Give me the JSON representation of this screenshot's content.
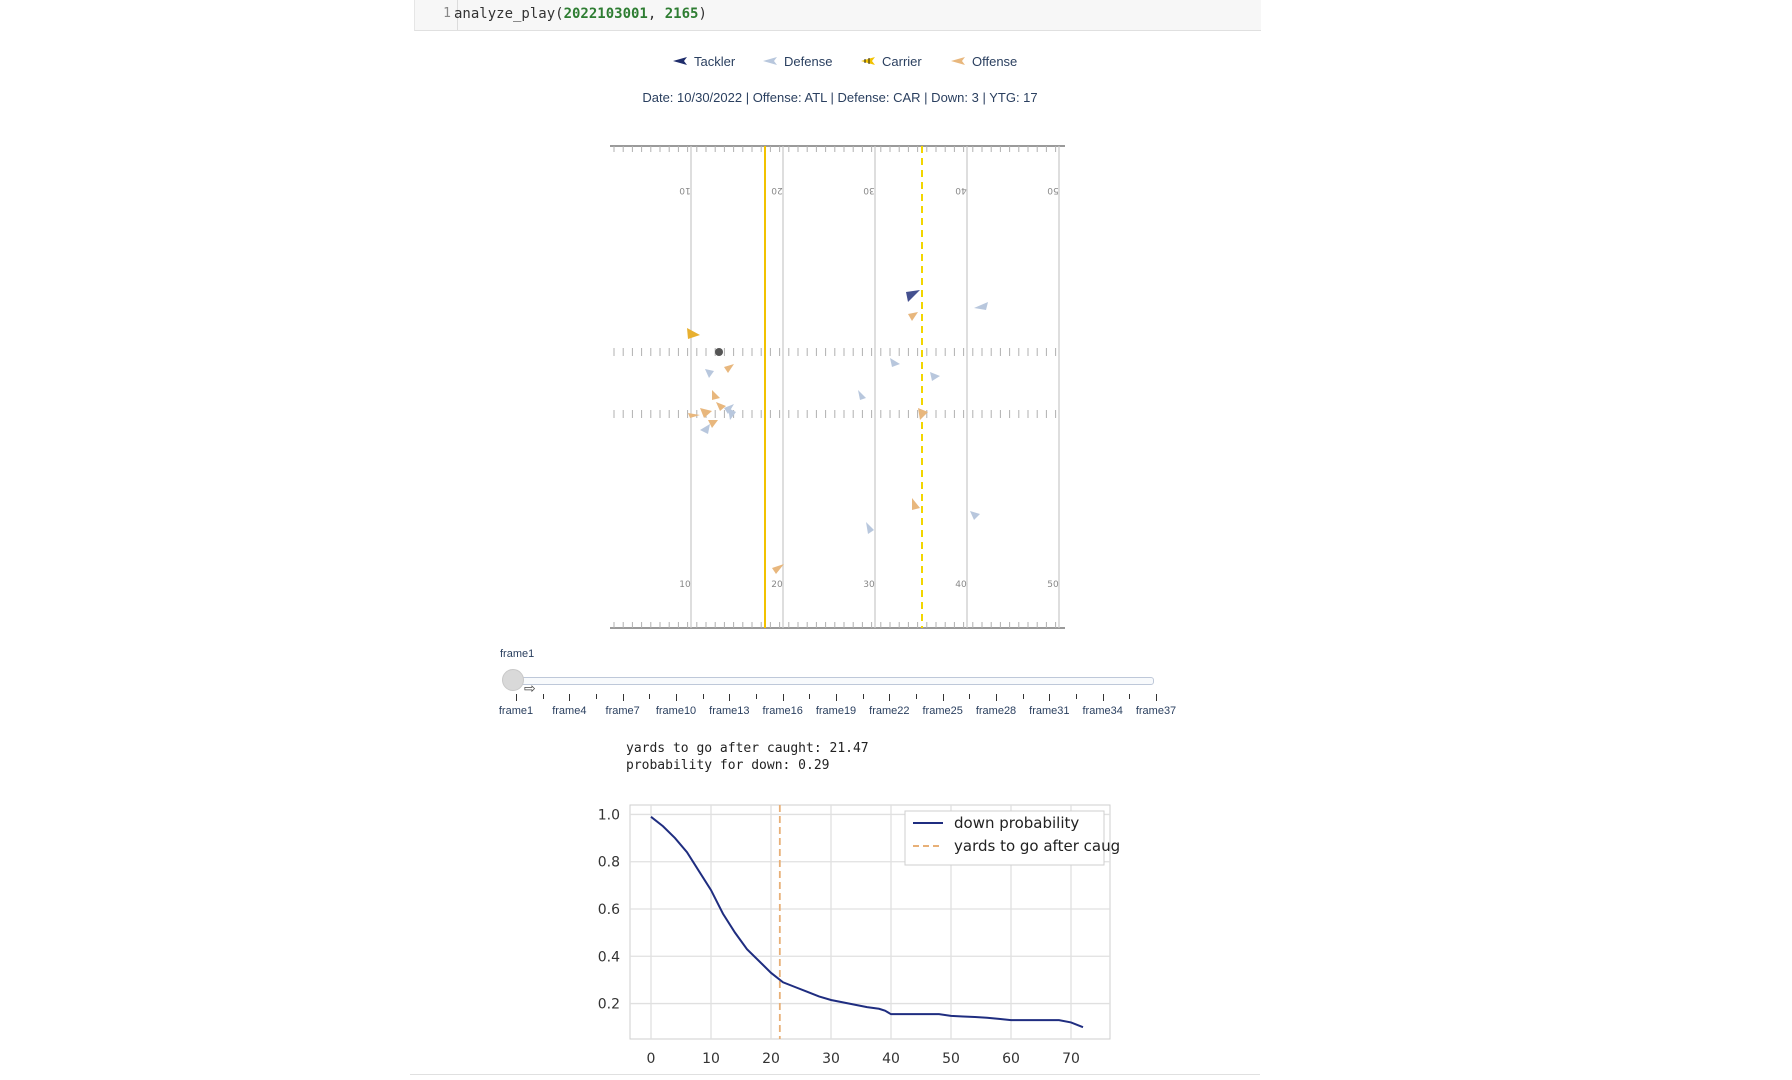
{
  "code_cell": {
    "line_number": "1",
    "func": "analyze_play(",
    "arg1": "2022103001",
    "sep": ", ",
    "arg2": "2165",
    "close": ")"
  },
  "legend": [
    {
      "label": "Tackler",
      "color": "#1f2d6b",
      "icon": "tackler-marker-icon"
    },
    {
      "label": "Defense",
      "color": "#b8c7dd",
      "icon": "defense-marker-icon"
    },
    {
      "label": "Carrier",
      "color": "#f2c200",
      "icon": "carrier-marker-icon"
    },
    {
      "label": "Offense",
      "color": "#e8b77d",
      "icon": "offense-marker-icon"
    }
  ],
  "play_info": "Date: 10/30/2022 | Offense: ATL | Defense: CAR | Down: 3 | YTG: 17",
  "field": {
    "yard_labels": [
      "10",
      "20",
      "30",
      "40",
      "50"
    ],
    "line_of_scrimmage_color": "#f2c200",
    "first_down_color": "#f2d600"
  },
  "slider": {
    "current_label": "frame1",
    "tick_labels": [
      "frame1",
      "frame4",
      "frame7",
      "frame10",
      "frame13",
      "frame16",
      "frame19",
      "frame22",
      "frame25",
      "frame28",
      "frame31",
      "frame34",
      "frame37"
    ]
  },
  "stdout": {
    "line1": "yards to go after caught: 21.47",
    "line2": "probability for down: 0.29"
  },
  "chart_data": {
    "type": "line",
    "x_ticks": [
      "0",
      "10",
      "20",
      "30",
      "40",
      "50",
      "60",
      "70"
    ],
    "y_ticks": [
      "0.2",
      "0.4",
      "0.6",
      "0.8",
      "1.0"
    ],
    "xlim": [
      -3.5,
      76.5
    ],
    "ylim": [
      0.05,
      1.04
    ],
    "grid": true,
    "legend_position": "top-right",
    "series": [
      {
        "name": "down probability",
        "color": "#1f2d80",
        "x": [
          0,
          2,
          4,
          6,
          8,
          10,
          12,
          14,
          16,
          18,
          20,
          22,
          24,
          26,
          28,
          30,
          32,
          34,
          36,
          38,
          39,
          40,
          42,
          44,
          46,
          48,
          50,
          52,
          54,
          56,
          58,
          60,
          62,
          64,
          66,
          68,
          70,
          72
        ],
        "y": [
          0.99,
          0.95,
          0.9,
          0.84,
          0.76,
          0.68,
          0.58,
          0.5,
          0.43,
          0.38,
          0.33,
          0.29,
          0.27,
          0.25,
          0.23,
          0.215,
          0.205,
          0.195,
          0.185,
          0.178,
          0.17,
          0.155,
          0.155,
          0.155,
          0.155,
          0.155,
          0.148,
          0.145,
          0.143,
          0.14,
          0.135,
          0.13,
          0.13,
          0.13,
          0.13,
          0.13,
          0.12,
          0.1
        ]
      }
    ],
    "vline": {
      "name": "yards to go after caught",
      "x": 21.47,
      "color": "#e8b077"
    }
  }
}
